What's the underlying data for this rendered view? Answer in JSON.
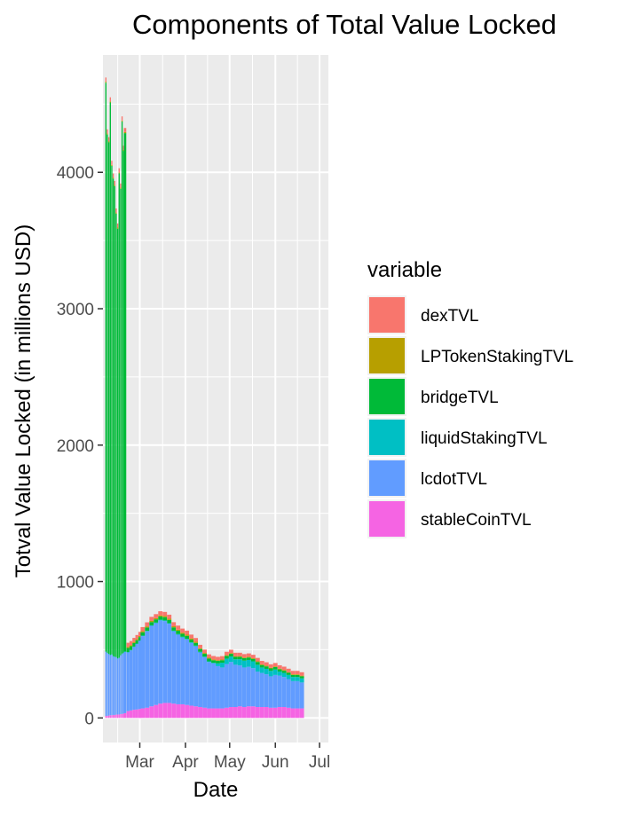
{
  "chart_data": {
    "type": "bar",
    "stacked": true,
    "title": "Components of Total Value Locked",
    "xlabel": "Date",
    "ylabel": "Totval Value Locked (in millions USD)",
    "ylim": [
      -180,
      4860
    ],
    "yticks": [
      0,
      1000,
      2000,
      3000,
      4000
    ],
    "ytick_labels": [
      "0",
      "1000",
      "2000",
      "3000",
      "4000"
    ],
    "xlim_days": [
      -16,
      137
    ],
    "xticks": [
      {
        "day": 9,
        "label": "Mar"
      },
      {
        "day": 40,
        "label": "Apr"
      },
      {
        "day": 70,
        "label": "May"
      },
      {
        "day": 101,
        "label": "Jun"
      },
      {
        "day": 131,
        "label": "Jul"
      }
    ],
    "grid": true,
    "legend": {
      "title": "variable",
      "position": "right"
    },
    "series": [
      {
        "name": "dexTVL",
        "color": "#F8766D"
      },
      {
        "name": "LPTokenStakingTVL",
        "color": "#B79F00"
      },
      {
        "name": "bridgeTVL",
        "color": "#00BA38"
      },
      {
        "name": "liquidStakingTVL",
        "color": "#00BFC4"
      },
      {
        "name": "lcdotTVL",
        "color": "#619CFF"
      },
      {
        "name": "stableCoinTVL",
        "color": "#F564E3"
      }
    ],
    "dates": [
      "Feb 15",
      "Feb 16",
      "Feb 17",
      "Feb 18",
      "Feb 19",
      "Feb 20",
      "Feb 21",
      "Feb 22",
      "Feb 23",
      "Feb 24",
      "Feb 25",
      "Feb 26",
      "Feb 27",
      "Feb 28",
      "Mar 2",
      "Mar 4",
      "Mar 6",
      "Mar 8",
      "Mar 10",
      "Mar 12",
      "Mar 15",
      "Mar 18",
      "Mar 21",
      "Mar 24",
      "Mar 27",
      "Mar 30",
      "Apr 2",
      "Apr 5",
      "Apr 8",
      "Apr 11",
      "Apr 14",
      "Apr 17",
      "Apr 20",
      "Apr 23",
      "Apr 26",
      "Apr 29",
      "May 2",
      "May 5",
      "May 8",
      "May 11",
      "May 14",
      "May 17",
      "May 20",
      "May 23",
      "May 26",
      "May 29",
      "Jun 1",
      "Jun 4",
      "Jun 7",
      "Jun 10",
      "Jun 13",
      "Jun 16",
      "Jun 19",
      "Jun 22",
      "Jun 25",
      "Jun 28"
    ],
    "days": [
      -14,
      -13,
      -12,
      -11,
      -10,
      -9,
      -8,
      -7,
      -6,
      -5,
      -4,
      -3,
      -2,
      -1,
      1,
      3,
      5,
      7,
      9,
      11,
      14,
      17,
      20,
      23,
      26,
      29,
      32,
      35,
      38,
      41,
      44,
      47,
      50,
      53,
      56,
      59,
      62,
      65,
      68,
      71,
      74,
      77,
      80,
      83,
      86,
      89,
      92,
      95,
      98,
      101,
      104,
      107,
      110,
      113,
      116,
      119
    ],
    "values": {
      "stableCoinTVL": [
        15,
        15,
        18,
        20,
        20,
        22,
        22,
        25,
        25,
        25,
        28,
        30,
        30,
        35,
        50,
        55,
        60,
        62,
        65,
        70,
        75,
        85,
        95,
        105,
        110,
        110,
        105,
        100,
        100,
        95,
        90,
        85,
        80,
        75,
        70,
        70,
        70,
        70,
        75,
        80,
        80,
        85,
        80,
        85,
        85,
        80,
        80,
        80,
        75,
        75,
        80,
        80,
        75,
        70,
        70,
        70
      ],
      "lcdotTVL": [
        470,
        460,
        450,
        440,
        445,
        430,
        425,
        420,
        410,
        415,
        430,
        440,
        445,
        450,
        430,
        440,
        460,
        480,
        500,
        530,
        560,
        590,
        600,
        610,
        600,
        580,
        530,
        510,
        490,
        480,
        460,
        440,
        400,
        370,
        340,
        330,
        310,
        300,
        320,
        330,
        310,
        300,
        290,
        290,
        280,
        260,
        250,
        240,
        230,
        240,
        230,
        220,
        210,
        200,
        200,
        190
      ],
      "liquidStakingTVL": [
        2,
        2,
        2,
        2,
        2,
        2,
        2,
        2,
        2,
        2,
        2,
        2,
        2,
        2,
        3,
        3,
        3,
        3,
        3,
        4,
        4,
        4,
        4,
        5,
        5,
        5,
        5,
        5,
        5,
        5,
        5,
        5,
        5,
        5,
        5,
        5,
        20,
        35,
        40,
        40,
        40,
        45,
        50,
        50,
        50,
        50,
        40,
        40,
        40,
        40,
        30,
        30,
        30,
        30,
        30,
        30
      ],
      "bridgeTVL": [
        4170,
        3800,
        3750,
        4050,
        3580,
        3500,
        3450,
        3250,
        3150,
        3550,
        3420,
        3900,
        3680,
        3800,
        30,
        28,
        26,
        25,
        25,
        24,
        24,
        24,
        24,
        24,
        24,
        24,
        24,
        24,
        22,
        22,
        20,
        20,
        20,
        20,
        20,
        18,
        18,
        18,
        20,
        20,
        18,
        18,
        18,
        18,
        18,
        20,
        18,
        18,
        18,
        18,
        16,
        16,
        16,
        15,
        15,
        15
      ],
      "LPTokenStakingTVL": [
        8,
        8,
        8,
        8,
        8,
        8,
        8,
        8,
        8,
        8,
        8,
        8,
        8,
        8,
        8,
        8,
        8,
        8,
        8,
        8,
        8,
        8,
        8,
        8,
        8,
        8,
        8,
        8,
        8,
        8,
        8,
        8,
        6,
        6,
        6,
        6,
        5,
        5,
        5,
        5,
        5,
        5,
        5,
        5,
        5,
        5,
        5,
        5,
        5,
        5,
        5,
        5,
        5,
        5,
        5,
        5
      ],
      "dexTVL": [
        30,
        30,
        30,
        30,
        30,
        30,
        30,
        30,
        30,
        30,
        30,
        30,
        30,
        30,
        30,
        30,
        30,
        30,
        30,
        30,
        30,
        30,
        30,
        30,
        30,
        30,
        30,
        30,
        30,
        30,
        28,
        28,
        25,
        25,
        25,
        25,
        25,
        25,
        25,
        25,
        25,
        25,
        25,
        25,
        25,
        25,
        25,
        25,
        25,
        25,
        25,
        25,
        25,
        25,
        25,
        25
      ]
    }
  }
}
